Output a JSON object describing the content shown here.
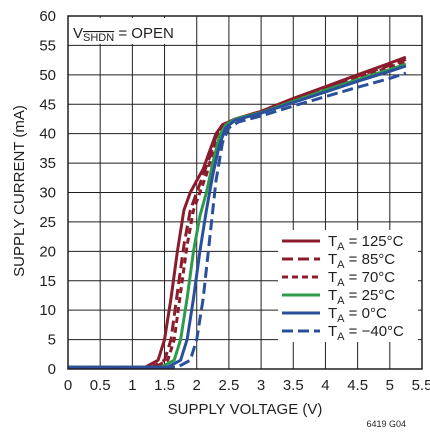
{
  "chart_data": {
    "type": "line",
    "xlabel": "SUPPLY VOLTAGE (V)",
    "ylabel": "SUPPLY CURRENT (mA)",
    "xlim": [
      0,
      5.5
    ],
    "ylim": [
      0,
      60
    ],
    "xticks": [
      "0",
      "0.5",
      "1",
      "1.5",
      "2",
      "2.5",
      "3",
      "3.5",
      "4",
      "4.5",
      "5",
      "5.5"
    ],
    "yticks": [
      "0",
      "5",
      "10",
      "15",
      "20",
      "25",
      "30",
      "35",
      "40",
      "45",
      "50",
      "55",
      "60"
    ],
    "grid": true,
    "legend_position": "bottom-right",
    "annotation": {
      "prefix": "V",
      "subscript": "SHDN",
      "suffix": " = OPEN"
    },
    "figure_id": "6419 G04",
    "series": [
      {
        "name": "TA = 125°C",
        "label_main": "T",
        "label_sub": "A",
        "label_rest": " = 125°C",
        "color": "#8b1c2c",
        "dash": "solid",
        "points": [
          [
            0,
            0.3
          ],
          [
            1.2,
            0.3
          ],
          [
            1.4,
            1.5
          ],
          [
            1.5,
            5
          ],
          [
            1.6,
            12
          ],
          [
            1.7,
            20
          ],
          [
            1.8,
            27
          ],
          [
            1.9,
            30
          ],
          [
            2.0,
            32
          ],
          [
            2.1,
            34
          ],
          [
            2.2,
            37
          ],
          [
            2.3,
            40
          ],
          [
            2.4,
            41.5
          ],
          [
            2.6,
            42.5
          ],
          [
            3.0,
            43.8
          ],
          [
            3.5,
            46
          ],
          [
            4.0,
            48
          ],
          [
            4.5,
            50
          ],
          [
            5.0,
            52
          ],
          [
            5.25,
            53
          ]
        ]
      },
      {
        "name": "TA = 85°C",
        "label_main": "T",
        "label_sub": "A",
        "label_rest": " = 85°C",
        "color": "#8b1c2c",
        "dash": "long",
        "points": [
          [
            0,
            0.3
          ],
          [
            1.3,
            0.3
          ],
          [
            1.5,
            1.5
          ],
          [
            1.6,
            5
          ],
          [
            1.7,
            13
          ],
          [
            1.8,
            21
          ],
          [
            1.9,
            27
          ],
          [
            2.0,
            30
          ],
          [
            2.1,
            33
          ],
          [
            2.2,
            36
          ],
          [
            2.3,
            39.5
          ],
          [
            2.4,
            41.5
          ],
          [
            2.6,
            42.5
          ],
          [
            3.0,
            43.8
          ],
          [
            3.5,
            45.8
          ],
          [
            4.0,
            47.8
          ],
          [
            4.5,
            49.8
          ],
          [
            5.0,
            51.6
          ],
          [
            5.25,
            52.6
          ]
        ]
      },
      {
        "name": "TA = 70°C",
        "label_main": "T",
        "label_sub": "A",
        "label_rest": " = 70°C",
        "color": "#8b1c2c",
        "dash": "short",
        "points": [
          [
            0,
            0.3
          ],
          [
            1.35,
            0.3
          ],
          [
            1.55,
            1.5
          ],
          [
            1.65,
            5
          ],
          [
            1.75,
            13
          ],
          [
            1.85,
            21
          ],
          [
            1.95,
            27
          ],
          [
            2.05,
            30
          ],
          [
            2.15,
            33
          ],
          [
            2.25,
            37
          ],
          [
            2.35,
            40.5
          ],
          [
            2.45,
            41.5
          ],
          [
            2.6,
            42.5
          ],
          [
            3.0,
            43.7
          ],
          [
            3.5,
            45.7
          ],
          [
            4.0,
            47.6
          ],
          [
            4.5,
            49.6
          ],
          [
            5.0,
            51.3
          ],
          [
            5.25,
            52.3
          ]
        ]
      },
      {
        "name": "TA = 25°C",
        "label_main": "T",
        "label_sub": "A",
        "label_rest": " = 25°C",
        "color": "#2e9a4c",
        "dash": "solid",
        "points": [
          [
            0,
            0.3
          ],
          [
            1.45,
            0.3
          ],
          [
            1.65,
            1.5
          ],
          [
            1.75,
            5
          ],
          [
            1.85,
            12
          ],
          [
            1.95,
            20
          ],
          [
            2.05,
            26
          ],
          [
            2.15,
            30
          ],
          [
            2.25,
            35
          ],
          [
            2.35,
            39.5
          ],
          [
            2.45,
            41.5
          ],
          [
            2.6,
            42.5
          ],
          [
            3.0,
            43.6
          ],
          [
            3.5,
            45.5
          ],
          [
            4.0,
            47.4
          ],
          [
            4.5,
            49.2
          ],
          [
            5.0,
            50.9
          ],
          [
            5.25,
            51.8
          ]
        ]
      },
      {
        "name": "TA = 0°C",
        "label_main": "T",
        "label_sub": "A",
        "label_rest": " = 0°C",
        "color": "#2a4f9b",
        "dash": "solid",
        "points": [
          [
            0,
            0.3
          ],
          [
            1.55,
            0.3
          ],
          [
            1.75,
            1.5
          ],
          [
            1.85,
            5
          ],
          [
            1.95,
            12
          ],
          [
            2.05,
            20
          ],
          [
            2.15,
            27
          ],
          [
            2.25,
            33
          ],
          [
            2.35,
            38
          ],
          [
            2.45,
            41
          ],
          [
            2.6,
            42.3
          ],
          [
            3.0,
            43.5
          ],
          [
            3.5,
            45.3
          ],
          [
            4.0,
            47.1
          ],
          [
            4.5,
            48.9
          ],
          [
            5.0,
            50.6
          ],
          [
            5.25,
            51.5
          ]
        ]
      },
      {
        "name": "TA = −40°C",
        "label_main": "T",
        "label_sub": "A",
        "label_rest": " = −40°C",
        "color": "#2a4f9b",
        "dash": "long",
        "points": [
          [
            0,
            0.3
          ],
          [
            1.7,
            0.3
          ],
          [
            1.9,
            1.5
          ],
          [
            2.0,
            5
          ],
          [
            2.1,
            12
          ],
          [
            2.2,
            22
          ],
          [
            2.3,
            32
          ],
          [
            2.4,
            38.5
          ],
          [
            2.5,
            41
          ],
          [
            2.65,
            42
          ],
          [
            3.0,
            43
          ],
          [
            3.5,
            44.7
          ],
          [
            4.0,
            46.3
          ],
          [
            4.5,
            47.9
          ],
          [
            5.0,
            49.4
          ],
          [
            5.25,
            50.3
          ]
        ]
      }
    ]
  }
}
